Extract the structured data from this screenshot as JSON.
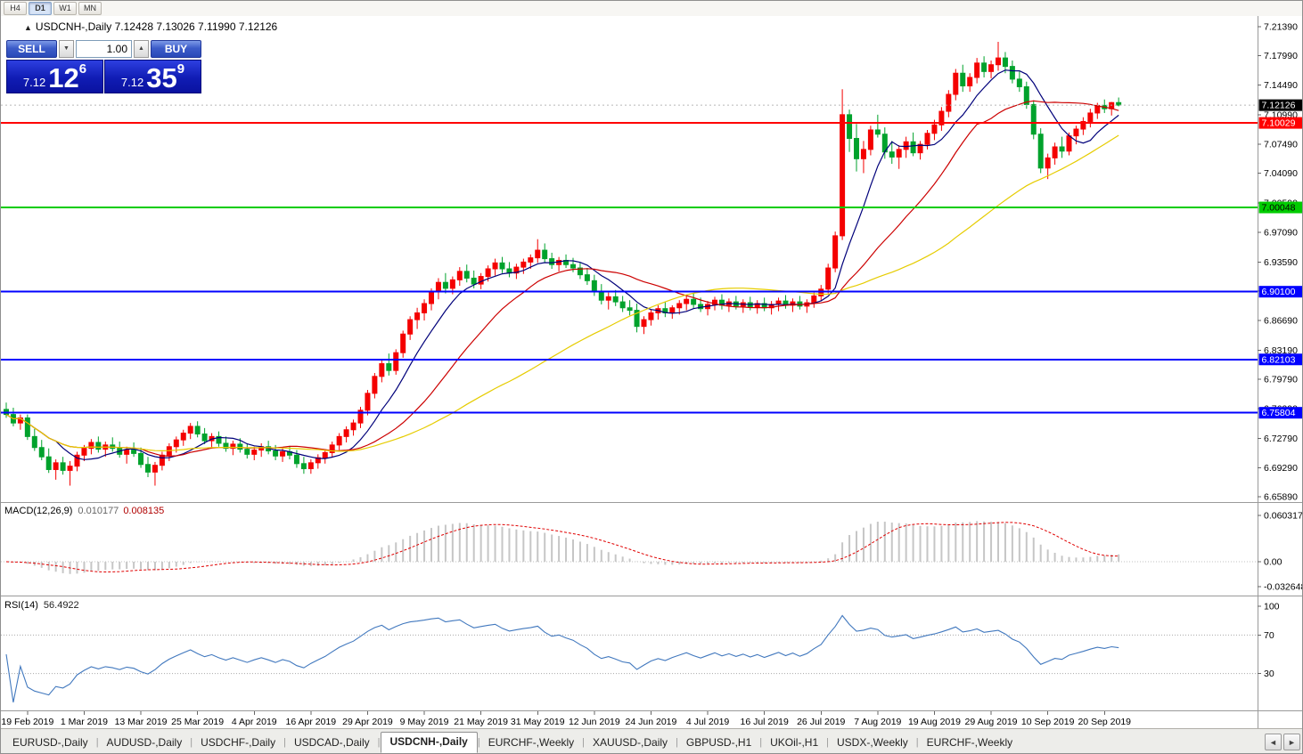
{
  "toolbar": {
    "timeframes": [
      "H4",
      "D1",
      "W1",
      "MN"
    ],
    "active": "D1"
  },
  "chart_header": {
    "collapse_icon": "▲",
    "symbol": "USDCNH-,Daily",
    "ohlc": "7.12428 7.13026 7.11990 7.12126"
  },
  "trade_panel": {
    "sell_label": "SELL",
    "buy_label": "BUY",
    "volume": "1.00",
    "spin_down_icon": "▼",
    "spin_up_icon": "▲",
    "bid": {
      "base": "7.12",
      "big": "12",
      "sup": "6"
    },
    "ask": {
      "base": "7.12",
      "big": "35",
      "sup": "9"
    }
  },
  "price_axis": {
    "labels": [
      "7.21390",
      "7.17990",
      "7.14490",
      "7.10990",
      "7.07490",
      "7.04090",
      "7.00590",
      "6.97090",
      "6.93590",
      "6.90190",
      "6.86690",
      "6.83190",
      "6.79790",
      "6.76290",
      "6.72790",
      "6.69290",
      "6.65890"
    ],
    "current": {
      "label": "7.12126",
      "value": 7.12126,
      "bg": "#000000",
      "fg": "#ffffff"
    }
  },
  "levels": [
    {
      "label": "7.10029",
      "value": 7.10029,
      "color": "#ff0000",
      "text_color": "#ffffff",
      "width": 2
    },
    {
      "label": "7.00048",
      "value": 7.00048,
      "color": "#00cc00",
      "text_color": "#000000",
      "width": 2
    },
    {
      "label": "6.90100",
      "value": 6.901,
      "color": "#0000ff",
      "text_color": "#ffffff",
      "width": 2
    },
    {
      "label": "6.82103",
      "value": 6.82103,
      "color": "#0000ff",
      "text_color": "#ffffff",
      "width": 2
    },
    {
      "label": "6.75804",
      "value": 6.75804,
      "color": "#0000ff",
      "text_color": "#ffffff",
      "width": 2
    }
  ],
  "macd_panel": {
    "name": "MACD(12,26,9)",
    "value_main": "0.010177",
    "value_signal": "0.008135",
    "axis_labels": [
      "0.060317",
      "0.00",
      "-0.032648"
    ],
    "axis_values": [
      0.060317,
      0,
      -0.032648
    ],
    "histogram_color": "#c6c6c6",
    "signal_color": "#e00000"
  },
  "rsi_panel": {
    "name": "RSI(14)",
    "value": "56.4922",
    "axis_labels": [
      "100",
      "70",
      "30"
    ],
    "axis_values": [
      100,
      70,
      30
    ],
    "level_values": [
      70,
      30
    ],
    "line_color": "#4178be"
  },
  "tabs": {
    "items": [
      "EURUSD-,Daily",
      "AUDUSD-,Daily",
      "USDCHF-,Daily",
      "USDCAD-,Daily",
      "USDCNH-,Daily",
      "EURCHF-,Weekly",
      "XAUUSD-,Daily",
      "GBPUSD-,H1",
      "UKOil-,H1",
      "USDX-,Weekly",
      "EURCHF-,Weekly"
    ],
    "active_index": 4,
    "scroll_left_icon": "◄",
    "scroll_right_icon": "►"
  },
  "chart_data": {
    "type": "candlestick",
    "title": "USDCNH-,Daily",
    "ylim": [
      6.6589,
      7.2139
    ],
    "x_tick_labels": [
      "19 Feb 2019",
      "1 Mar 2019",
      "13 Mar 2019",
      "25 Mar 2019",
      "4 Apr 2019",
      "16 Apr 2019",
      "29 Apr 2019",
      "9 May 2019",
      "21 May 2019",
      "31 May 2019",
      "12 Jun 2019",
      "24 Jun 2019",
      "4 Jul 2019",
      "16 Jul 2019",
      "26 Jul 2019",
      "7 Aug 2019",
      "19 Aug 2019",
      "29 Aug 2019",
      "10 Sep 2019",
      "20 Sep 2019"
    ],
    "x_first_label_bar": 3,
    "x_label_every": 8,
    "colors": {
      "up": "#f40000",
      "down": "#00a22c",
      "ma_fast": "#00007a",
      "ma_mid": "#cc0000",
      "ma_slow": "#e6cc00"
    },
    "ma_periods": [
      8,
      20,
      45
    ],
    "candles": [
      [
        6.762,
        6.77,
        6.752,
        6.756
      ],
      [
        6.756,
        6.764,
        6.742,
        6.746
      ],
      [
        6.746,
        6.756,
        6.738,
        6.752
      ],
      [
        6.752,
        6.756,
        6.726,
        6.73
      ],
      [
        6.73,
        6.739,
        6.713,
        6.717
      ],
      [
        6.717,
        6.726,
        6.702,
        6.706
      ],
      [
        6.706,
        6.716,
        6.687,
        6.691
      ],
      [
        6.691,
        6.703,
        6.679,
        6.699
      ],
      [
        6.699,
        6.706,
        6.685,
        6.69
      ],
      [
        6.69,
        6.701,
        6.672,
        6.695
      ],
      [
        6.695,
        6.712,
        6.689,
        6.708
      ],
      [
        6.708,
        6.72,
        6.701,
        6.716
      ],
      [
        6.716,
        6.727,
        6.709,
        6.723
      ],
      [
        6.723,
        6.73,
        6.711,
        6.715
      ],
      [
        6.715,
        6.724,
        6.706,
        6.72
      ],
      [
        6.72,
        6.729,
        6.712,
        6.716
      ],
      [
        6.716,
        6.724,
        6.705,
        6.709
      ],
      [
        6.709,
        6.718,
        6.698,
        6.714
      ],
      [
        6.714,
        6.723,
        6.706,
        6.71
      ],
      [
        6.71,
        6.717,
        6.693,
        6.697
      ],
      [
        6.697,
        6.706,
        6.682,
        6.688
      ],
      [
        6.688,
        6.7,
        6.672,
        6.696
      ],
      [
        6.696,
        6.712,
        6.69,
        6.708
      ],
      [
        6.708,
        6.722,
        6.701,
        6.718
      ],
      [
        6.718,
        6.73,
        6.711,
        6.726
      ],
      [
        6.726,
        6.738,
        6.719,
        6.734
      ],
      [
        6.734,
        6.746,
        6.727,
        6.742
      ],
      [
        6.742,
        6.748,
        6.729,
        6.733
      ],
      [
        6.733,
        6.74,
        6.721,
        6.725
      ],
      [
        6.725,
        6.734,
        6.717,
        6.73
      ],
      [
        6.73,
        6.736,
        6.718,
        6.722
      ],
      [
        6.722,
        6.73,
        6.712,
        6.716
      ],
      [
        6.716,
        6.725,
        6.708,
        6.721
      ],
      [
        6.721,
        6.728,
        6.711,
        6.715
      ],
      [
        6.715,
        6.722,
        6.704,
        6.709
      ],
      [
        6.709,
        6.718,
        6.702,
        6.714
      ],
      [
        6.714,
        6.722,
        6.706,
        6.718
      ],
      [
        6.718,
        6.725,
        6.709,
        6.713
      ],
      [
        6.713,
        6.72,
        6.702,
        6.707
      ],
      [
        6.707,
        6.716,
        6.7,
        6.712
      ],
      [
        6.712,
        6.719,
        6.703,
        6.708
      ],
      [
        6.708,
        6.714,
        6.693,
        6.698
      ],
      [
        6.698,
        6.706,
        6.686,
        6.692
      ],
      [
        6.692,
        6.703,
        6.686,
        6.699
      ],
      [
        6.699,
        6.709,
        6.692,
        6.705
      ],
      [
        6.705,
        6.715,
        6.698,
        6.711
      ],
      [
        6.711,
        6.724,
        6.705,
        6.72
      ],
      [
        6.72,
        6.734,
        6.714,
        6.73
      ],
      [
        6.73,
        6.742,
        6.723,
        6.738
      ],
      [
        6.738,
        6.75,
        6.731,
        6.746
      ],
      [
        6.746,
        6.765,
        6.74,
        6.761
      ],
      [
        6.761,
        6.785,
        6.755,
        6.781
      ],
      [
        6.781,
        6.805,
        6.775,
        6.801
      ],
      [
        6.801,
        6.82,
        6.794,
        6.816
      ],
      [
        6.816,
        6.828,
        6.802,
        6.808
      ],
      [
        6.808,
        6.833,
        6.803,
        6.829
      ],
      [
        6.829,
        6.855,
        6.823,
        6.851
      ],
      [
        6.851,
        6.872,
        6.844,
        6.868
      ],
      [
        6.868,
        6.882,
        6.857,
        6.876
      ],
      [
        6.876,
        6.892,
        6.867,
        6.887
      ],
      [
        6.887,
        6.905,
        6.879,
        6.901
      ],
      [
        6.901,
        6.917,
        6.892,
        6.912
      ],
      [
        6.912,
        6.923,
        6.899,
        6.905
      ],
      [
        6.905,
        6.919,
        6.898,
        6.915
      ],
      [
        6.915,
        6.93,
        6.908,
        6.925
      ],
      [
        6.925,
        6.933,
        6.912,
        6.917
      ],
      [
        6.917,
        6.926,
        6.905,
        6.91
      ],
      [
        6.91,
        6.923,
        6.904,
        6.919
      ],
      [
        6.919,
        6.932,
        6.913,
        6.928
      ],
      [
        6.928,
        6.94,
        6.92,
        6.935
      ],
      [
        6.935,
        6.942,
        6.923,
        6.928
      ],
      [
        6.928,
        6.936,
        6.918,
        6.923
      ],
      [
        6.923,
        6.934,
        6.916,
        6.93
      ],
      [
        6.93,
        6.94,
        6.922,
        6.936
      ],
      [
        6.936,
        6.945,
        6.928,
        6.941
      ],
      [
        6.941,
        6.963,
        6.935,
        6.95
      ],
      [
        6.95,
        6.958,
        6.935,
        6.94
      ],
      [
        6.94,
        6.947,
        6.928,
        6.933
      ],
      [
        6.933,
        6.942,
        6.925,
        6.938
      ],
      [
        6.938,
        6.945,
        6.929,
        6.933
      ],
      [
        6.933,
        6.941,
        6.924,
        6.929
      ],
      [
        6.929,
        6.936,
        6.916,
        6.921
      ],
      [
        6.921,
        6.929,
        6.909,
        6.914
      ],
      [
        6.914,
        6.921,
        6.896,
        6.901
      ],
      [
        6.901,
        6.91,
        6.886,
        6.891
      ],
      [
        6.891,
        6.9,
        6.88,
        6.895
      ],
      [
        6.895,
        6.903,
        6.884,
        6.889
      ],
      [
        6.889,
        6.896,
        6.877,
        6.882
      ],
      [
        6.882,
        6.891,
        6.873,
        6.879
      ],
      [
        6.879,
        6.887,
        6.853,
        6.86
      ],
      [
        6.86,
        6.872,
        6.851,
        6.868
      ],
      [
        6.868,
        6.88,
        6.861,
        6.876
      ],
      [
        6.876,
        6.885,
        6.868,
        6.881
      ],
      [
        6.881,
        6.889,
        6.871,
        6.876
      ],
      [
        6.876,
        6.885,
        6.869,
        6.882
      ],
      [
        6.882,
        6.891,
        6.874,
        6.887
      ],
      [
        6.887,
        6.896,
        6.879,
        6.892
      ],
      [
        6.892,
        6.899,
        6.881,
        6.886
      ],
      [
        6.886,
        6.894,
        6.877,
        6.881
      ],
      [
        6.881,
        6.89,
        6.873,
        6.886
      ],
      [
        6.886,
        6.895,
        6.879,
        6.891
      ],
      [
        6.891,
        6.898,
        6.88,
        6.885
      ],
      [
        6.885,
        6.893,
        6.877,
        6.889
      ],
      [
        6.889,
        6.896,
        6.88,
        6.884
      ],
      [
        6.884,
        6.892,
        6.876,
        6.888
      ],
      [
        6.888,
        6.895,
        6.879,
        6.883
      ],
      [
        6.883,
        6.891,
        6.875,
        6.887
      ],
      [
        6.887,
        6.894,
        6.878,
        6.882
      ],
      [
        6.882,
        6.89,
        6.874,
        6.886
      ],
      [
        6.886,
        6.894,
        6.878,
        6.89
      ],
      [
        6.89,
        6.897,
        6.881,
        6.885
      ],
      [
        6.885,
        6.893,
        6.877,
        6.889
      ],
      [
        6.889,
        6.896,
        6.88,
        6.884
      ],
      [
        6.884,
        6.892,
        6.876,
        6.888
      ],
      [
        6.888,
        6.9,
        6.882,
        6.896
      ],
      [
        6.896,
        6.909,
        6.89,
        6.904
      ],
      [
        6.904,
        6.934,
        6.899,
        6.929
      ],
      [
        6.929,
        6.972,
        6.924,
        6.967
      ],
      [
        6.967,
        7.14,
        6.962,
        7.11
      ],
      [
        7.11,
        7.116,
        7.066,
        7.082
      ],
      [
        7.082,
        7.099,
        7.043,
        7.058
      ],
      [
        7.058,
        7.079,
        7.041,
        7.069
      ],
      [
        7.069,
        7.097,
        7.062,
        7.092
      ],
      [
        7.092,
        7.11,
        7.083,
        7.087
      ],
      [
        7.087,
        7.095,
        7.058,
        7.066
      ],
      [
        7.066,
        7.079,
        7.052,
        7.06
      ],
      [
        7.06,
        7.074,
        7.046,
        7.069
      ],
      [
        7.069,
        7.084,
        7.059,
        7.078
      ],
      [
        7.078,
        7.089,
        7.061,
        7.065
      ],
      [
        7.065,
        7.079,
        7.057,
        7.075
      ],
      [
        7.075,
        7.092,
        7.069,
        7.088
      ],
      [
        7.088,
        7.104,
        7.08,
        7.098
      ],
      [
        7.098,
        7.119,
        7.091,
        7.114
      ],
      [
        7.114,
        7.139,
        7.107,
        7.134
      ],
      [
        7.134,
        7.164,
        7.127,
        7.159
      ],
      [
        7.159,
        7.169,
        7.137,
        7.144
      ],
      [
        7.144,
        7.159,
        7.137,
        7.154
      ],
      [
        7.154,
        7.177,
        7.147,
        7.171
      ],
      [
        7.171,
        7.179,
        7.154,
        7.161
      ],
      [
        7.161,
        7.174,
        7.153,
        7.169
      ],
      [
        7.169,
        7.196,
        7.162,
        7.177
      ],
      [
        7.177,
        7.184,
        7.159,
        7.167
      ],
      [
        7.167,
        7.174,
        7.147,
        7.152
      ],
      [
        7.152,
        7.161,
        7.137,
        7.143
      ],
      [
        7.143,
        7.149,
        7.117,
        7.122
      ],
      [
        7.122,
        7.127,
        7.081,
        7.087
      ],
      [
        7.087,
        7.094,
        7.041,
        7.047
      ],
      [
        7.047,
        7.064,
        7.034,
        7.059
      ],
      [
        7.059,
        7.077,
        7.051,
        7.072
      ],
      [
        7.072,
        7.084,
        7.059,
        7.067
      ],
      [
        7.067,
        7.089,
        7.062,
        7.085
      ],
      [
        7.085,
        7.097,
        7.075,
        7.093
      ],
      [
        7.093,
        7.107,
        7.086,
        7.102
      ],
      [
        7.102,
        7.117,
        7.095,
        7.112
      ],
      [
        7.112,
        7.124,
        7.105,
        7.121
      ],
      [
        7.121,
        7.128,
        7.112,
        7.117
      ],
      [
        7.117,
        7.125,
        7.109,
        7.1243
      ],
      [
        7.1243,
        7.1303,
        7.1199,
        7.1213
      ]
    ]
  }
}
